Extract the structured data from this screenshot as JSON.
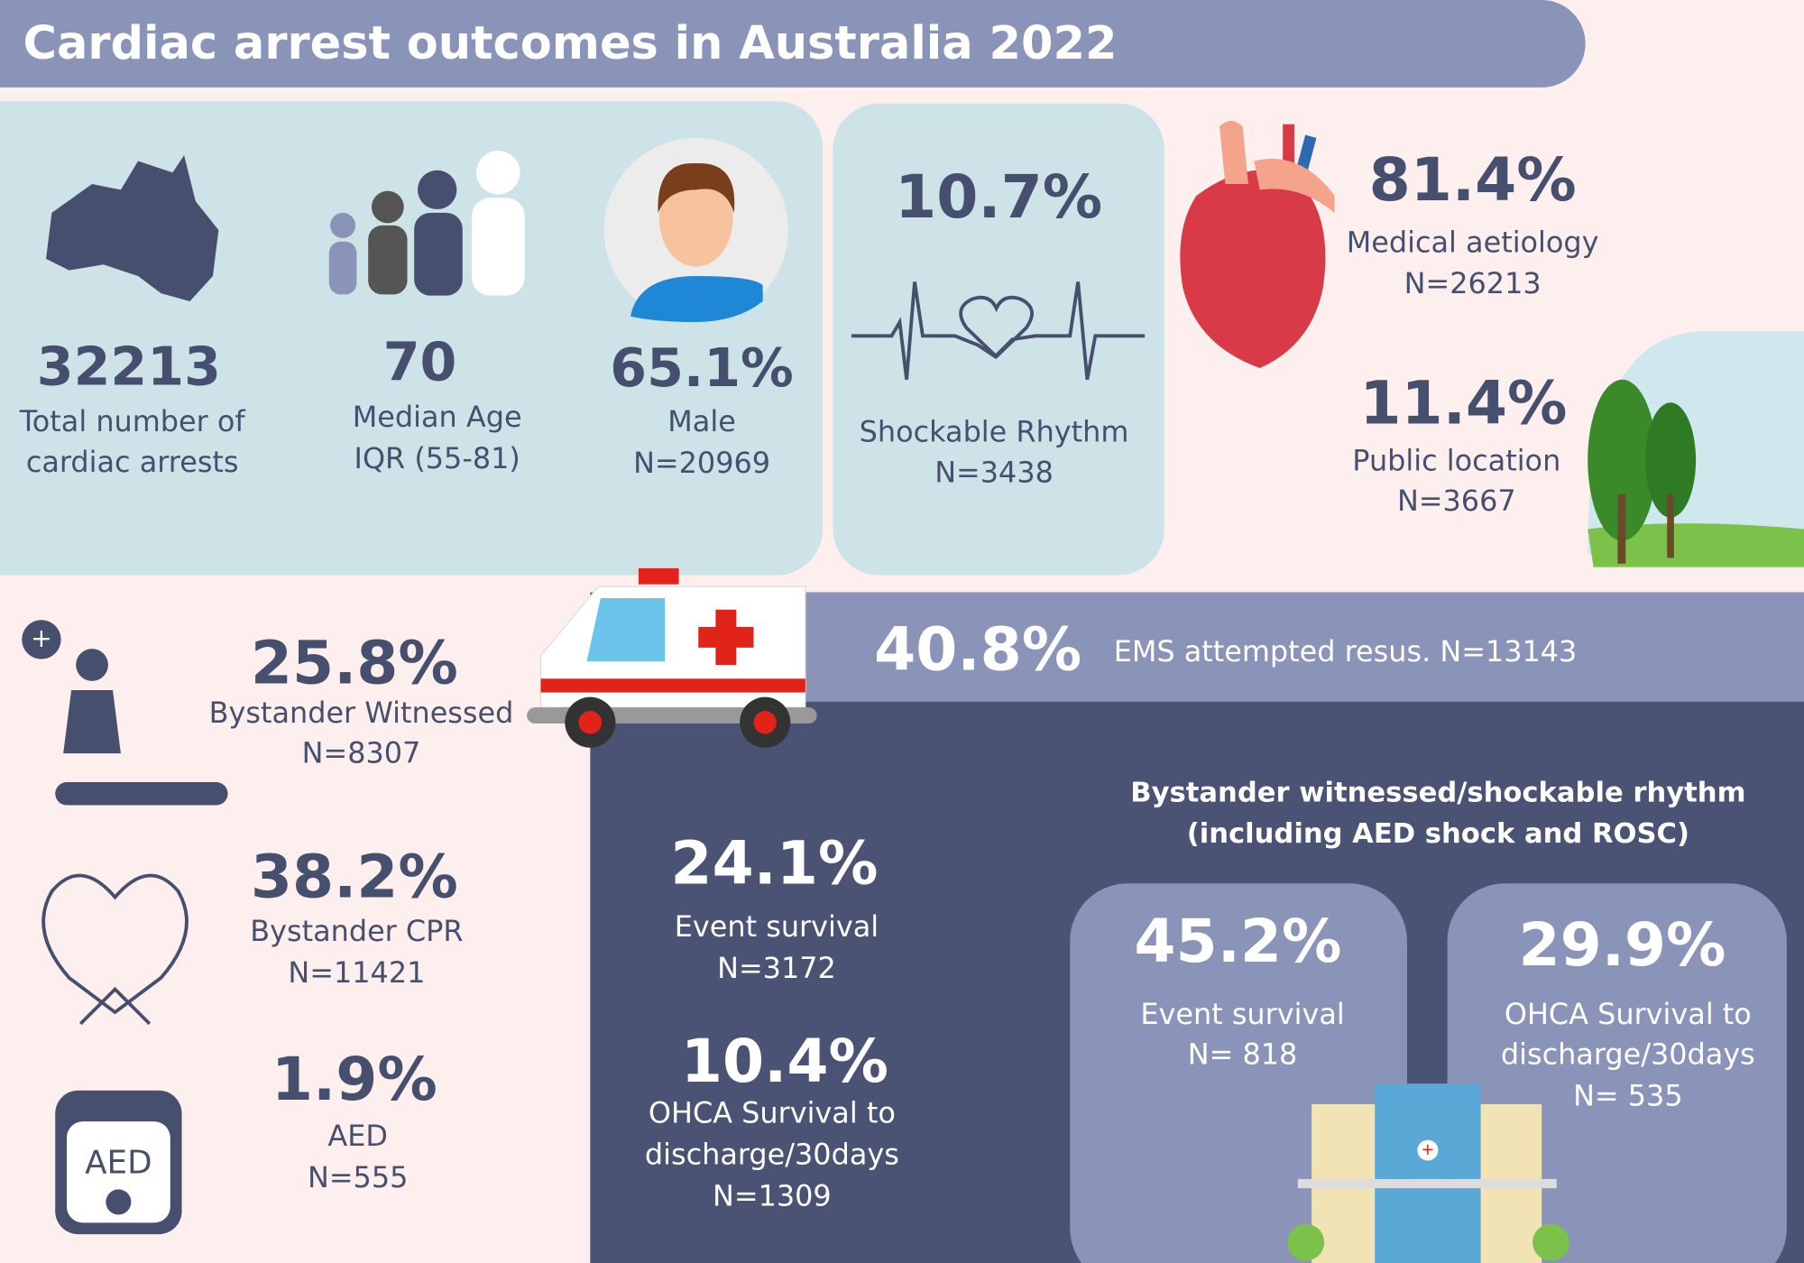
{
  "title": "Cardiac arrest outcomes in Australia 2022",
  "overview": [
    {
      "value": "32213",
      "lines": [
        "Total number of",
        "cardiac arrests"
      ]
    },
    {
      "value": "70",
      "lines": [
        "Median Age",
        "IQR (55-81)"
      ]
    },
    {
      "value": "65.1%",
      "lines": [
        "Male",
        "N=20969"
      ]
    }
  ],
  "shockable": {
    "value": "10.7%",
    "lines": [
      "Shockable Rhythm",
      "N=3438"
    ]
  },
  "aetiology": {
    "value": "81.4%",
    "lines": [
      "Medical aetiology",
      "N=26213"
    ]
  },
  "location": {
    "value": "11.4%",
    "lines": [
      "Public location",
      "N=3667"
    ]
  },
  "bystander": [
    {
      "value": "25.8%",
      "lines": [
        "Bystander Witnessed",
        "N=8307"
      ]
    },
    {
      "value": "38.2%",
      "lines": [
        "Bystander CPR",
        "N=11421"
      ]
    },
    {
      "value": "1.9%",
      "lines": [
        "AED",
        "N=555"
      ]
    }
  ],
  "ems": {
    "value": "40.8%",
    "label": "EMS attempted resus. N=13143"
  },
  "survival": [
    {
      "value": "24.1%",
      "lines": [
        "Event survival",
        "N=3172"
      ]
    },
    {
      "value": "10.4%",
      "lines": [
        "OHCA Survival to",
        "discharge/30days",
        "N=1309"
      ]
    }
  ],
  "subgroup": {
    "title": [
      "Bystander witnessed/shockable rhythm",
      "(including AED shock and ROSC)"
    ],
    "items": [
      {
        "value": "45.2%",
        "lines": [
          "Event survival",
          "N= 818"
        ]
      },
      {
        "value": "29.9%",
        "lines": [
          "OHCA Survival to",
          "discharge/30days",
          "N= 535"
        ]
      }
    ]
  }
}
